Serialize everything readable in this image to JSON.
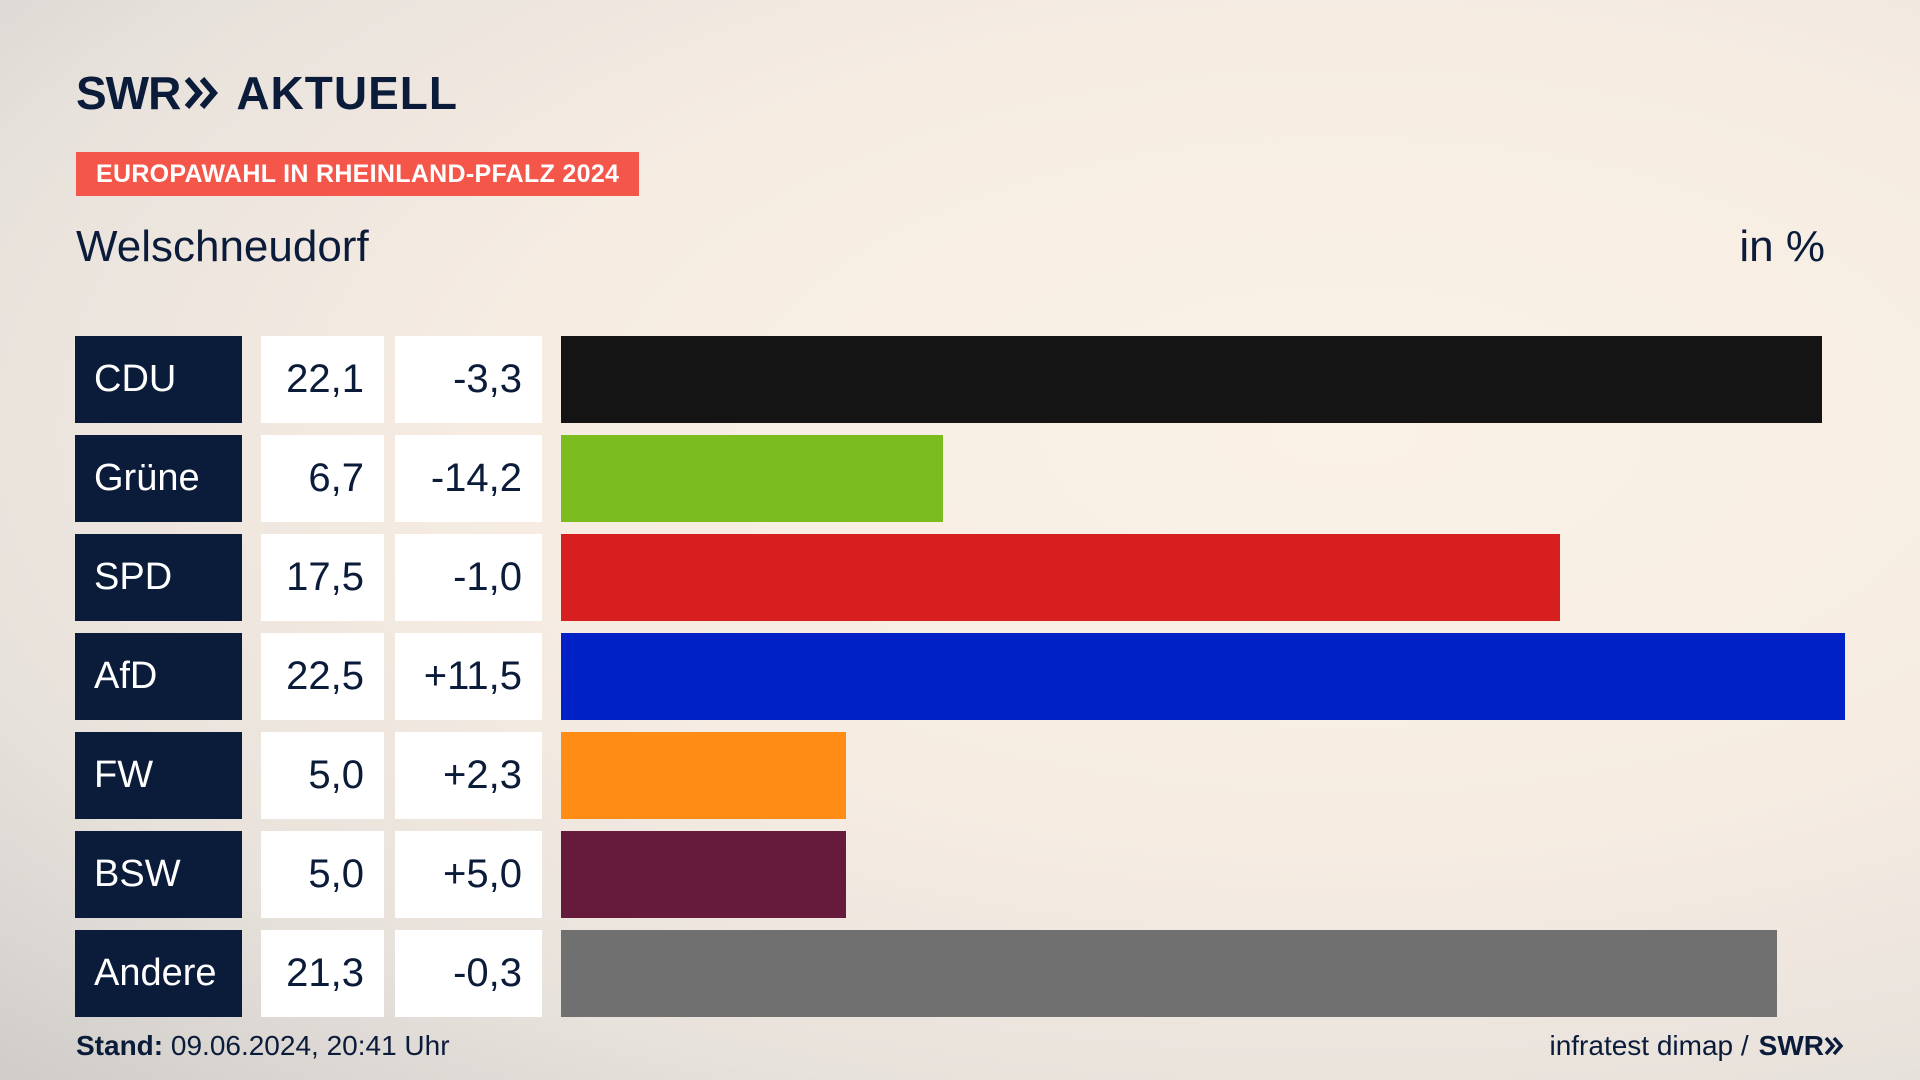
{
  "header": {
    "logo_swr": "SWR",
    "logo_aktuell": "AKTUELL",
    "banner": "EUROPAWAHL IN RHEINLAND-PFALZ 2024",
    "subtitle": "Welschneudorf",
    "unit": "in %"
  },
  "chart_data": {
    "type": "bar",
    "orientation": "horizontal",
    "title": "EUROPAWAHL IN RHEINLAND-PFALZ 2024",
    "subtitle": "Welschneudorf",
    "unit": "in %",
    "xlim": [
      0,
      22.5
    ],
    "categories": [
      "CDU",
      "Grüne",
      "SPD",
      "AfD",
      "FW",
      "BSW",
      "Andere"
    ],
    "values": [
      22.1,
      6.7,
      17.5,
      22.5,
      5.0,
      5.0,
      21.3
    ],
    "value_labels": [
      "22,1",
      "6,7",
      "17,5",
      "22,5",
      "5,0",
      "5,0",
      "21,3"
    ],
    "change_labels": [
      "-3,3",
      "-14,2",
      "-1,0",
      "+11,5",
      "+2,3",
      "+5,0",
      "-0,3"
    ],
    "colors": [
      "#141414",
      "#7bbd1f",
      "#d71f1f",
      "#0021c6",
      "#ff8c14",
      "#661a3c",
      "#707070"
    ]
  },
  "footer": {
    "stand_label": "Stand:",
    "stand_value": " 09.06.2024, 20:41 Uhr",
    "source": "infratest dimap /",
    "source_brand": "SWR"
  }
}
